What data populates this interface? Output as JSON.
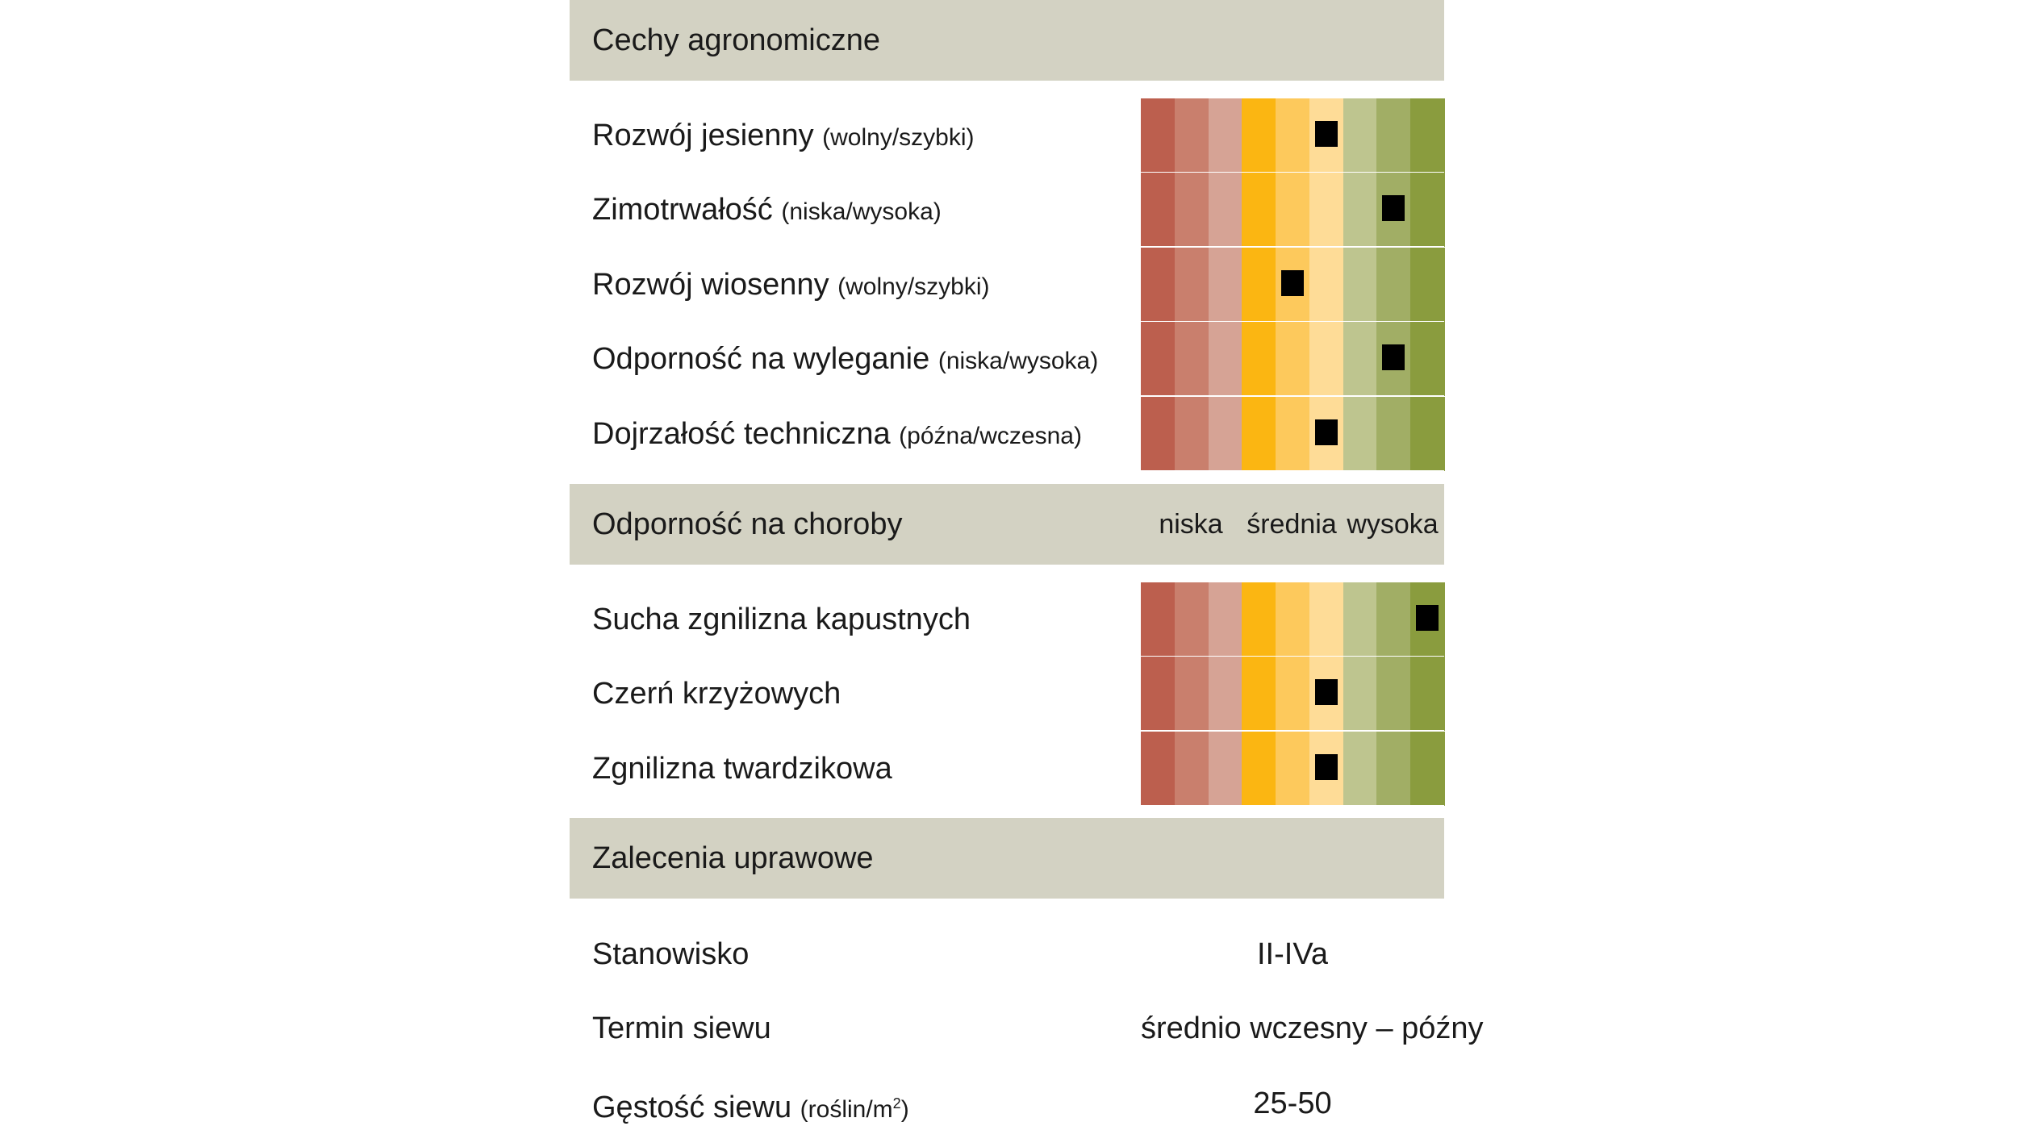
{
  "sections": {
    "agronomic_title": "Cechy agronomiczne",
    "disease_title": "Odporność na choroby",
    "recommend_title": "Zalecenia uprawowe"
  },
  "scale_labels": {
    "low": "niska",
    "mid": "średnia",
    "high": "wysoka"
  },
  "scale_colors": [
    "#bc5f4e",
    "#c97f6d",
    "#d6a395",
    "#fbb612",
    "#fdc95c",
    "#fedc97",
    "#bec58f",
    "#a1ae65",
    "#8a9c3e"
  ],
  "agronomic": [
    {
      "label": "Rozwój jesienny",
      "hint": "(wolny/szybki)",
      "score": 6
    },
    {
      "label": "Zimotrwałość",
      "hint": "(niska/wysoka)",
      "score": 8
    },
    {
      "label": "Rozwój wiosenny",
      "hint": "(wolny/szybki)",
      "score": 5
    },
    {
      "label": "Odporność na wyleganie",
      "hint": "(niska/wysoka)",
      "score": 8
    },
    {
      "label": "Dojrzałość techniczna",
      "hint": "(późna/wczesna)",
      "score": 6
    }
  ],
  "disease": [
    {
      "label": "Sucha zgnilizna kapustnych",
      "score": 9
    },
    {
      "label": "Czerń krzyżowych",
      "score": 6
    },
    {
      "label": "Zgnilizna twardzikowa",
      "score": 6
    }
  ],
  "recommendations": [
    {
      "label": "Stanowisko",
      "value": "II-IVa"
    },
    {
      "label": "Termin siewu",
      "value": "średnio wczesny – późny"
    },
    {
      "label": "Gęstość siewu",
      "hint": "(roślin/m",
      "hint_sup": "2",
      "hint_end": ")",
      "value": "25-50"
    }
  ]
}
